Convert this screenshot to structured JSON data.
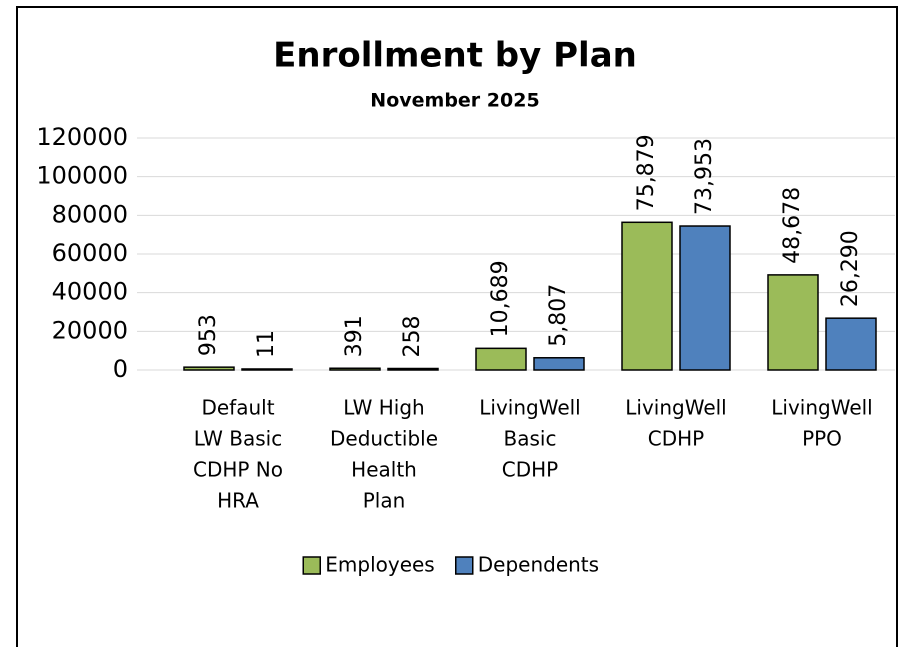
{
  "chart_data": {
    "type": "bar",
    "title": "Enrollment by Plan",
    "subtitle": "November 2025",
    "categories": [
      [
        "Default",
        "LW Basic",
        "CDHP No",
        "HRA"
      ],
      [
        "LW High",
        "Deductible",
        "Health",
        "Plan"
      ],
      [
        "LivingWell",
        "Basic",
        "CDHP"
      ],
      [
        "LivingWell",
        "CDHP"
      ],
      [
        "LivingWell",
        "PPO"
      ]
    ],
    "series": [
      {
        "name": "Employees",
        "color": "#9bbb59",
        "values": [
          953,
          391,
          10689,
          75879,
          48678
        ],
        "value_labels": [
          "953",
          "391",
          "10,689",
          "75,879",
          "48,678"
        ]
      },
      {
        "name": "Dependents",
        "color": "#4f81bd",
        "values": [
          11,
          258,
          5807,
          73953,
          26290
        ],
        "value_labels": [
          "11",
          "258",
          "5,807",
          "73,953",
          "26,290"
        ]
      }
    ],
    "ylim": [
      0,
      120000
    ],
    "yticks": [
      0,
      20000,
      40000,
      60000,
      80000,
      100000,
      120000
    ],
    "grid": true,
    "legend": "bottom"
  }
}
